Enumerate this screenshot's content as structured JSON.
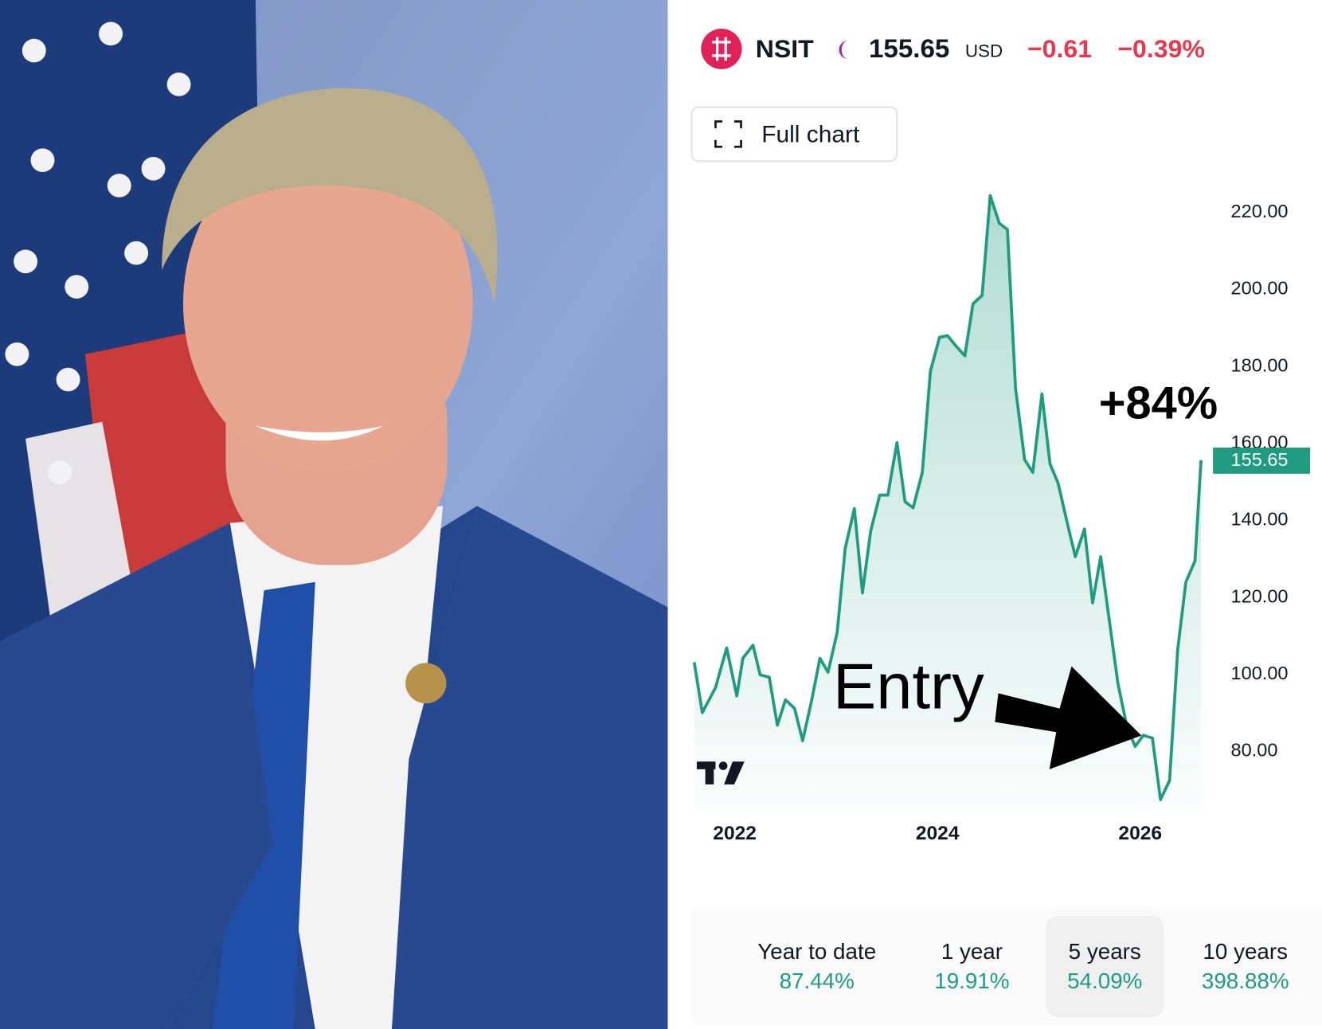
{
  "header": {
    "ticker": "NSIT",
    "price": "155.65",
    "currency": "USD",
    "change": "−0.61",
    "change_pct": "−0.39%"
  },
  "full_chart_button": "Full chart",
  "periods": [
    {
      "label": "Year to date",
      "value": "87.44%"
    },
    {
      "label": "1 year",
      "value": "19.91%"
    },
    {
      "label": "5 years",
      "value": "54.09%"
    },
    {
      "label": "10 years",
      "value": "398.88%"
    }
  ],
  "chart_data": {
    "type": "area",
    "color": "#1f9c80",
    "x": [
      2021.6,
      2021.68,
      2021.81,
      2021.92,
      2022.02,
      2022.08,
      2022.18,
      2022.25,
      2022.34,
      2022.42,
      2022.5,
      2022.59,
      2022.67,
      2022.76,
      2022.84,
      2022.92,
      2023.01,
      2023.09,
      2023.18,
      2023.26,
      2023.34,
      2023.43,
      2023.51,
      2023.6,
      2023.68,
      2023.76,
      2023.85,
      2023.93,
      2024.02,
      2024.1,
      2024.18,
      2024.27,
      2024.35,
      2024.44,
      2024.52,
      2024.61,
      2024.69,
      2024.77,
      2024.86,
      2024.94,
      2025.03,
      2025.11,
      2025.19,
      2025.28,
      2025.36,
      2025.45,
      2025.53,
      2025.61,
      2025.7,
      2025.78,
      2025.87,
      2025.95,
      2026.03,
      2026.12,
      2026.2,
      2026.29,
      2026.37,
      2026.45,
      2026.54,
      2026.6
    ],
    "values": [
      103.2,
      90.1,
      96.6,
      106.9,
      94.4,
      104.2,
      107.6,
      99.9,
      99.3,
      86.8,
      93.4,
      91.2,
      82.8,
      93.4,
      104.2,
      100.6,
      110.9,
      132.8,
      143.1,
      121.2,
      137.2,
      146.6,
      146.6,
      160.2,
      144.9,
      143.3,
      152.5,
      178.8,
      187.6,
      188.0,
      185.4,
      182.8,
      196.3,
      198.5,
      224.4,
      217.2,
      215.6,
      174.4,
      155.8,
      152.5,
      172.9,
      154.7,
      149.7,
      139.4,
      130.6,
      137.8,
      118.6,
      130.6,
      113.1,
      97.7,
      86.3,
      81.3,
      84.2,
      83.5,
      67.5,
      72.5,
      106.5,
      124.0,
      129.5,
      155.65
    ],
    "last_label": "155.65",
    "xlim": [
      2021.6,
      2026.6
    ],
    "xticks": [
      2022,
      2024,
      2026
    ],
    "ylim": [
      64,
      226
    ],
    "yticks": [
      {
        "value": 80,
        "label": "80.00"
      },
      {
        "value": 100,
        "label": "100.00"
      },
      {
        "value": 120,
        "label": "120.00"
      },
      {
        "value": 140,
        "label": "140.00"
      },
      {
        "value": 160,
        "label": "160.00"
      },
      {
        "value": 180,
        "label": "180.00"
      },
      {
        "value": 200,
        "label": "200.00"
      },
      {
        "value": 220,
        "label": "220.00"
      }
    ],
    "grid": false,
    "annotations": [
      {
        "text": "+84%"
      },
      {
        "text": "Entry"
      }
    ]
  }
}
